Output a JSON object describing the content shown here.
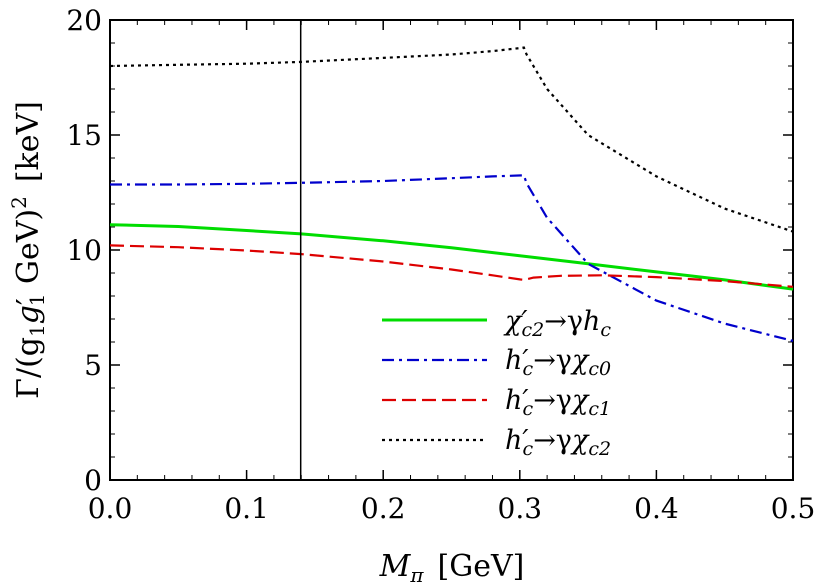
{
  "chart_data": {
    "type": "line",
    "title": "",
    "xlabel": "M_π [GeV]",
    "ylabel": "Γ/(g1 g1′ GeV)² [keV]",
    "xlim": [
      0.0,
      0.5
    ],
    "ylim": [
      0,
      20
    ],
    "grid": false,
    "legend_position": "bottom-right",
    "x_ticks": [
      0.0,
      0.1,
      0.2,
      0.3,
      0.4,
      0.5
    ],
    "x_tick_labels": [
      "0.0",
      "0.1",
      "0.2",
      "0.3",
      "0.4",
      "0.5"
    ],
    "y_ticks": [
      0,
      5,
      10,
      15,
      20
    ],
    "y_tick_labels": [
      "0",
      "5",
      "10",
      "15",
      "20"
    ],
    "vertical_marker": {
      "x": 0.1396,
      "color": "#000000"
    },
    "series": [
      {
        "name": "χ′c2→γhc",
        "color": "#00dd00",
        "dash": "solid",
        "x": [
          0.0,
          0.05,
          0.1,
          0.14,
          0.2,
          0.25,
          0.3,
          0.35,
          0.4,
          0.45,
          0.5
        ],
        "values": [
          11.1,
          11.02,
          10.85,
          10.7,
          10.4,
          10.1,
          9.75,
          9.4,
          9.05,
          8.7,
          8.3
        ]
      },
      {
        "name": "h′c→γχc0",
        "color": "#0000cc",
        "dash": "dashdot",
        "x": [
          0.0,
          0.05,
          0.1,
          0.14,
          0.2,
          0.25,
          0.28,
          0.303,
          0.305,
          0.32,
          0.35,
          0.4,
          0.45,
          0.5
        ],
        "values": [
          12.85,
          12.85,
          12.88,
          12.92,
          13.0,
          13.12,
          13.2,
          13.25,
          12.9,
          11.4,
          9.4,
          7.8,
          6.8,
          6.05
        ]
      },
      {
        "name": "h′c→γχc1",
        "color": "#dd0000",
        "dash": "dashed",
        "x": [
          0.0,
          0.05,
          0.1,
          0.14,
          0.2,
          0.25,
          0.28,
          0.3,
          0.303,
          0.31,
          0.33,
          0.36,
          0.4,
          0.45,
          0.5
        ],
        "values": [
          10.2,
          10.12,
          9.98,
          9.82,
          9.5,
          9.15,
          8.9,
          8.72,
          8.7,
          8.8,
          8.88,
          8.9,
          8.82,
          8.65,
          8.4
        ]
      },
      {
        "name": "h′c→γχc2",
        "color": "#000000",
        "dash": "dotted",
        "x": [
          0.0,
          0.05,
          0.1,
          0.14,
          0.2,
          0.25,
          0.28,
          0.3,
          0.303,
          0.305,
          0.32,
          0.35,
          0.4,
          0.45,
          0.5
        ],
        "values": [
          18.0,
          18.05,
          18.1,
          18.18,
          18.35,
          18.5,
          18.65,
          18.78,
          18.8,
          18.5,
          17.0,
          15.0,
          13.2,
          11.8,
          10.8
        ]
      }
    ]
  },
  "legend": {
    "items": [
      {
        "base": "χ",
        "prime": "′",
        "sub": "c2",
        "arrow": "→γ",
        "target": "h",
        "target_sub": "c"
      },
      {
        "base": "h",
        "prime": "′",
        "sub": "c",
        "arrow": "→γ",
        "target": "χ",
        "target_sub": "c0"
      },
      {
        "base": "h",
        "prime": "′",
        "sub": "c",
        "arrow": "→γ",
        "target": "χ",
        "target_sub": "c1"
      },
      {
        "base": "h",
        "prime": "′",
        "sub": "c",
        "arrow": "→γ",
        "target": "χ",
        "target_sub": "c2"
      }
    ]
  },
  "axes": {
    "x_title": {
      "main": "M",
      "sub": "π",
      "unit": "[GeV]"
    },
    "y_title": {
      "gamma": "Γ/(g",
      "s1": "1",
      "g2": "g",
      "p": "′",
      "s2": "1",
      "mid": " GeV)",
      "sup": "2",
      "unit": "[keV]"
    }
  }
}
